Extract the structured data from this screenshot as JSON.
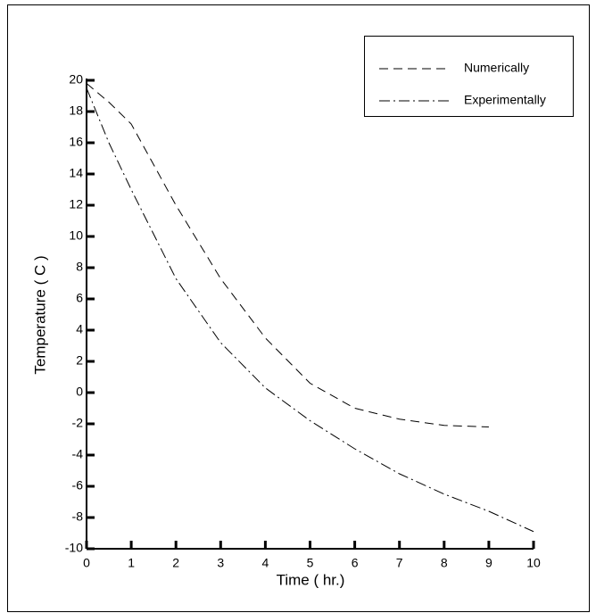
{
  "chart_data": {
    "type": "line",
    "xlabel": "Time ( hr.)",
    "ylabel": "Temperature ( C )",
    "xlim": [
      0,
      10
    ],
    "ylim": [
      -10,
      20
    ],
    "xticks": [
      0,
      1,
      2,
      3,
      4,
      5,
      6,
      7,
      8,
      9,
      10
    ],
    "yticks": [
      -10,
      -8,
      -6,
      -4,
      -2,
      0,
      2,
      4,
      6,
      8,
      10,
      12,
      14,
      16,
      18,
      20
    ],
    "legend": "top-right",
    "series": [
      {
        "name": "Numerically",
        "color": "#000000",
        "dash": "dashed",
        "x": [
          0,
          0.5,
          1,
          2,
          3,
          4,
          5,
          6,
          7,
          8,
          9
        ],
        "values": [
          19.8,
          18.6,
          17.2,
          12,
          7.3,
          3.5,
          0.6,
          -1,
          -1.7,
          -2.1,
          -2.2
        ]
      },
      {
        "name": "Experimentally",
        "color": "#000000",
        "dash": "dashdot",
        "x": [
          0,
          0.5,
          1,
          2,
          3,
          4,
          5,
          6,
          7,
          8,
          9,
          10
        ],
        "values": [
          19.5,
          16,
          13,
          7.3,
          3.2,
          0.3,
          -1.8,
          -3.6,
          -5.2,
          -6.5,
          -7.6,
          -8.9
        ]
      }
    ]
  }
}
